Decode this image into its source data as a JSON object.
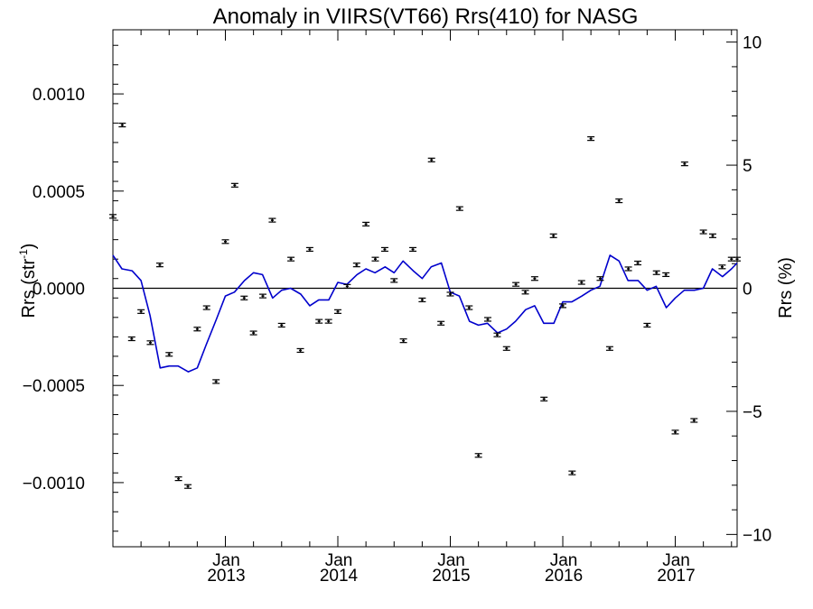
{
  "chart_data": {
    "type": "scatter",
    "title": "Anomaly in VIIRS(VT66) Rrs(410) for NASG",
    "ylabel_left": {
      "base": "Rrs (str",
      "sup": "-1",
      "close": ")"
    },
    "ylabel_right": "Rrs (%)",
    "x_unit": "decimal year",
    "xlim": [
      2012.0,
      2017.55
    ],
    "ylim_left": [
      -0.00133,
      0.00133
    ],
    "ylim_right": [
      -10.5,
      10.5
    ],
    "left_ticks": [
      {
        "value": 0.001,
        "label": "0.0010"
      },
      {
        "value": 0.0005,
        "label": "0.0005"
      },
      {
        "value": 0.0,
        "label": "0.0000"
      },
      {
        "value": -0.0005,
        "label": "−0.0005"
      },
      {
        "value": -0.001,
        "label": "−0.0010"
      }
    ],
    "right_ticks": [
      {
        "value": 10,
        "label": "10"
      },
      {
        "value": 5,
        "label": "5"
      },
      {
        "value": 0,
        "label": "0"
      },
      {
        "value": -5,
        "label": "−5"
      },
      {
        "value": -10,
        "label": "−10"
      }
    ],
    "x_ticks": [
      {
        "value": 2013.0,
        "month": "Jan",
        "year": "2013"
      },
      {
        "value": 2014.0,
        "month": "Jan",
        "year": "2014"
      },
      {
        "value": 2015.0,
        "month": "Jan",
        "year": "2015"
      },
      {
        "value": 2016.0,
        "month": "Jan",
        "year": "2016"
      },
      {
        "value": 2017.0,
        "month": "Jan",
        "year": "2017"
      }
    ],
    "colors": {
      "points": "#000000",
      "line": "#0000cc",
      "zero_line": "#000000"
    },
    "series": [
      {
        "kind": "points_with_error_bars",
        "axis": "left",
        "x": [
          2012.0,
          2012.083,
          2012.167,
          2012.25,
          2012.333,
          2012.417,
          2012.5,
          2012.583,
          2012.667,
          2012.75,
          2012.833,
          2012.917,
          2013.0,
          2013.083,
          2013.167,
          2013.25,
          2013.333,
          2013.417,
          2013.5,
          2013.583,
          2013.667,
          2013.75,
          2013.833,
          2013.917,
          2014.0,
          2014.083,
          2014.167,
          2014.25,
          2014.333,
          2014.417,
          2014.5,
          2014.583,
          2014.667,
          2014.75,
          2014.833,
          2014.917,
          2015.0,
          2015.083,
          2015.167,
          2015.25,
          2015.333,
          2015.417,
          2015.5,
          2015.583,
          2015.667,
          2015.75,
          2015.833,
          2015.917,
          2016.0,
          2016.083,
          2016.167,
          2016.25,
          2016.333,
          2016.417,
          2016.5,
          2016.583,
          2016.667,
          2016.75,
          2016.833,
          2016.917,
          2017.0,
          2017.083,
          2017.167,
          2017.25,
          2017.333,
          2017.417,
          2017.5,
          2017.55
        ],
        "y": [
          0.00037,
          0.00084,
          -0.00026,
          -0.00012,
          -0.00028,
          0.00012,
          -0.00034,
          -0.00098,
          -0.00102,
          -0.00021,
          -0.0001,
          -0.00048,
          0.00024,
          0.00053,
          -5e-05,
          -0.00023,
          -4e-05,
          0.00035,
          -0.00019,
          0.00015,
          -0.00032,
          0.0002,
          -0.00017,
          -0.00017,
          -0.00012,
          1e-05,
          0.00012,
          0.00033,
          0.00015,
          0.0002,
          4e-05,
          -0.00027,
          0.0002,
          -6e-05,
          0.00066,
          -0.00018,
          -3e-05,
          0.00041,
          -0.0001,
          -0.00086,
          -0.00016,
          -0.00024,
          -0.00031,
          2e-05,
          -2e-05,
          5e-05,
          -0.00057,
          0.00027,
          -9e-05,
          -0.00095,
          3e-05,
          0.00077,
          5e-05,
          -0.00031,
          0.00045,
          0.0001,
          0.00013,
          -0.00019,
          8e-05,
          7e-05,
          -0.00074,
          0.00064,
          -0.00068,
          0.00029,
          0.00027,
          0.00011,
          0.00015,
          0.00015
        ]
      },
      {
        "kind": "line",
        "axis": "left",
        "x": [
          2012.0,
          2012.08,
          2012.17,
          2012.25,
          2012.33,
          2012.42,
          2012.5,
          2012.58,
          2012.67,
          2012.75,
          2012.83,
          2012.92,
          2013.0,
          2013.08,
          2013.17,
          2013.25,
          2013.33,
          2013.42,
          2013.5,
          2013.58,
          2013.67,
          2013.75,
          2013.83,
          2013.92,
          2014.0,
          2014.08,
          2014.17,
          2014.25,
          2014.33,
          2014.42,
          2014.5,
          2014.58,
          2014.67,
          2014.75,
          2014.83,
          2014.92,
          2015.0,
          2015.08,
          2015.17,
          2015.25,
          2015.33,
          2015.42,
          2015.5,
          2015.58,
          2015.67,
          2015.75,
          2015.83,
          2015.92,
          2016.0,
          2016.08,
          2016.17,
          2016.25,
          2016.33,
          2016.42,
          2016.5,
          2016.58,
          2016.67,
          2016.75,
          2016.83,
          2016.92,
          2017.0,
          2017.08,
          2017.17,
          2017.25,
          2017.33,
          2017.42,
          2017.5,
          2017.55
        ],
        "y": [
          0.00017,
          0.0001,
          9e-05,
          4e-05,
          -0.00014,
          -0.00041,
          -0.0004,
          -0.0004,
          -0.00043,
          -0.00041,
          -0.00029,
          -0.00016,
          -4e-05,
          -2e-05,
          4e-05,
          8e-05,
          7e-05,
          -5e-05,
          -1e-05,
          0.0,
          -3e-05,
          -9e-05,
          -6e-05,
          -6e-05,
          3e-05,
          2e-05,
          7e-05,
          0.0001,
          8e-05,
          0.00011,
          8e-05,
          0.00014,
          9e-05,
          5e-05,
          0.00011,
          0.00013,
          -2e-05,
          -4e-05,
          -0.00017,
          -0.00019,
          -0.00018,
          -0.00023,
          -0.00021,
          -0.00017,
          -0.00011,
          -9e-05,
          -0.00018,
          -0.00018,
          -7e-05,
          -7e-05,
          -4e-05,
          -1e-05,
          1e-05,
          0.00017,
          0.00014,
          4e-05,
          4e-05,
          -1e-05,
          1e-05,
          -0.0001,
          -5e-05,
          -1e-05,
          -1e-05,
          0.0,
          0.0001,
          6e-05,
          0.0001,
          0.00013
        ]
      }
    ]
  }
}
